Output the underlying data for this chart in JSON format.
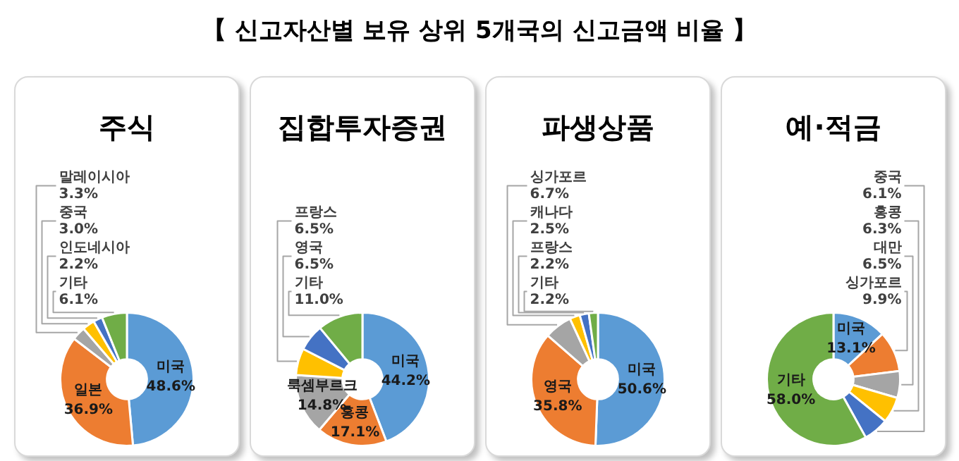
{
  "chart_data": [
    {
      "type": "donut",
      "title": "주식",
      "annotations": [
        "【 신고자산별 보유 상위 5개국의 신고금액 비율 】"
      ],
      "categories": [
        "미국",
        "일본",
        "말레이시아",
        "중국",
        "인도네시아",
        "기타"
      ],
      "values": [
        48.6,
        36.9,
        3.3,
        3.0,
        2.2,
        6.1
      ],
      "value_labels": [
        "48.6%",
        "36.9%",
        "3.3%",
        "3.0%",
        "2.2%",
        "6.1%"
      ],
      "colors": [
        "#5b9bd5",
        "#ed7d31",
        "#a5a5a5",
        "#ffc000",
        "#4472c4",
        "#70ad47"
      ],
      "legend": false
    },
    {
      "type": "donut",
      "title": "집합투자증권",
      "categories": [
        "미국",
        "홍콩",
        "룩셈부르크",
        "프랑스",
        "영국",
        "기타"
      ],
      "values": [
        44.2,
        17.1,
        14.8,
        6.5,
        6.5,
        11.0
      ],
      "value_labels": [
        "44.2%",
        "17.1%",
        "14.8%",
        "6.5%",
        "6.5%",
        "11.0%"
      ],
      "colors": [
        "#5b9bd5",
        "#ed7d31",
        "#a5a5a5",
        "#ffc000",
        "#4472c4",
        "#70ad47"
      ],
      "legend": false
    },
    {
      "type": "donut",
      "title": "파생상품",
      "categories": [
        "미국",
        "영국",
        "싱가포르",
        "캐나다",
        "프랑스",
        "기타"
      ],
      "values": [
        50.6,
        35.8,
        6.7,
        2.5,
        2.2,
        2.2
      ],
      "value_labels": [
        "50.6%",
        "35.8%",
        "6.7%",
        "2.5%",
        "2.2%",
        "2.2%"
      ],
      "colors": [
        "#5b9bd5",
        "#ed7d31",
        "#a5a5a5",
        "#ffc000",
        "#4472c4",
        "#70ad47"
      ],
      "legend": false
    },
    {
      "type": "donut",
      "title": "예·적금",
      "categories": [
        "미국",
        "싱가포르",
        "대만",
        "홍콩",
        "중국",
        "기타"
      ],
      "values": [
        13.1,
        9.9,
        6.5,
        6.3,
        6.1,
        58.0
      ],
      "value_labels": [
        "13.1%",
        "9.9%",
        "6.5%",
        "6.3%",
        "6.1%",
        "58.0%"
      ],
      "colors": [
        "#5b9bd5",
        "#ed7d31",
        "#a5a5a5",
        "#ffc000",
        "#4472c4",
        "#70ad47"
      ],
      "legend": false
    }
  ]
}
